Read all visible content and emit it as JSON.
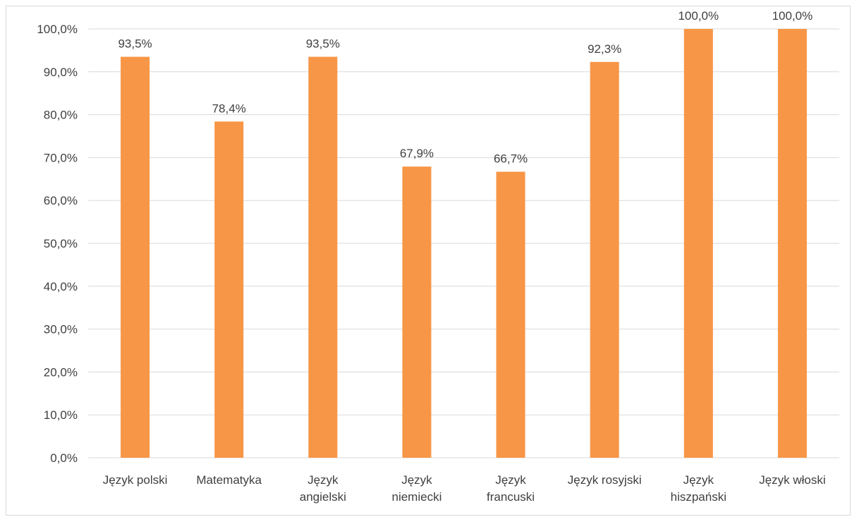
{
  "chart_data": {
    "type": "bar",
    "categories": [
      [
        "Język polski"
      ],
      [
        "Matematyka"
      ],
      [
        "Język",
        "angielski"
      ],
      [
        "Język",
        "niemiecki"
      ],
      [
        "Język",
        "francuski"
      ],
      [
        "Język rosyjski"
      ],
      [
        "Język",
        "hiszpański"
      ],
      [
        "Język włoski"
      ]
    ],
    "values": [
      93.5,
      78.4,
      93.5,
      67.9,
      66.7,
      92.3,
      100.0,
      100.0
    ],
    "data_labels": [
      "93,5%",
      "78,4%",
      "93,5%",
      "67,9%",
      "66,7%",
      "92,3%",
      "100,0%",
      "100,0%"
    ],
    "y_ticks": [
      "0,0%",
      "10,0%",
      "20,0%",
      "30,0%",
      "40,0%",
      "50,0%",
      "60,0%",
      "70,0%",
      "80,0%",
      "90,0%",
      "100,0%"
    ],
    "ylim": [
      0,
      100
    ],
    "grid": true,
    "legend": "none",
    "title": "",
    "xlabel": "",
    "ylabel": "",
    "colors": {
      "bar": "#F79646",
      "grid": "#d9d9d9",
      "text": "#404040"
    }
  }
}
